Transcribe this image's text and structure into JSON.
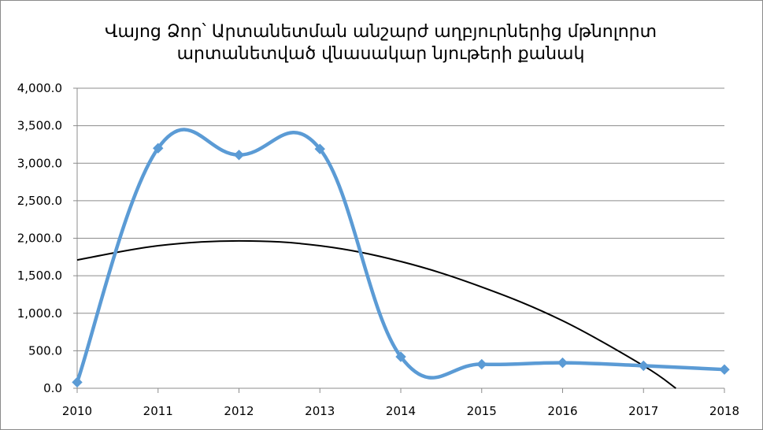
{
  "chart_data": {
    "type": "line",
    "title": "Վայոց Ձոր՝ Արտանետման անշարժ աղբյուրներից մթնոլորտ արտանետված վնասակար նյութերի քանակ",
    "title_lines": [
      "Վայոց Ձոր՝ Արտանետման անշարժ աղբյուրներից մթնոլորտ",
      "արտանետված վնասակար նյութերի քանակ"
    ],
    "xlabel": "",
    "ylabel": "",
    "x": [
      2010,
      2011,
      2012,
      2013,
      2014,
      2015,
      2016,
      2017,
      2018
    ],
    "x_tick_labels": [
      "2010",
      "2011",
      "2012",
      "2013",
      "2014",
      "2015",
      "2016",
      "2017",
      "2018"
    ],
    "y_tick_labels": [
      "0.0",
      "500.0",
      "1,000.0",
      "1,500.0",
      "2,000.0",
      "2,500.0",
      "3,000.0",
      "3,500.0",
      "4,000.0"
    ],
    "y_ticks": [
      0,
      500,
      1000,
      1500,
      2000,
      2500,
      3000,
      3500,
      4000
    ],
    "ylim": [
      0,
      4000
    ],
    "xlim": [
      2010,
      2018
    ],
    "grid": "horizontal",
    "legend": "none",
    "series": [
      {
        "values": [
          80,
          3200,
          3110,
          3190,
          420,
          320,
          340,
          300,
          250
        ],
        "smooth": true,
        "marker": "diamond",
        "color": "#5b9bd5"
      }
    ],
    "trendline": {
      "type": "polynomial-2",
      "color": "#000000",
      "sampled": [
        {
          "x": 2010,
          "y": 1710
        },
        {
          "x": 2011,
          "y": 1900
        },
        {
          "x": 2012,
          "y": 1965
        },
        {
          "x": 2013,
          "y": 1900
        },
        {
          "x": 2014,
          "y": 1690
        },
        {
          "x": 2015,
          "y": 1350
        },
        {
          "x": 2016,
          "y": 900
        },
        {
          "x": 2017,
          "y": 300
        },
        {
          "x": 2017.4,
          "y": 0
        }
      ]
    }
  }
}
